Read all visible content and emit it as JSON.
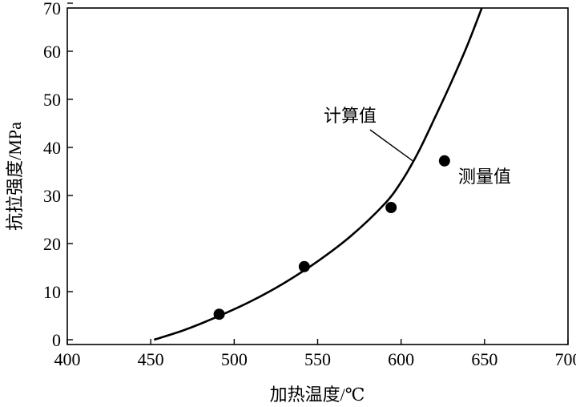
{
  "chart_data": {
    "type": "line",
    "xlabel": "加热温度/℃",
    "ylabel": "抗拉强度/MPa",
    "xlim": [
      400,
      700
    ],
    "ylim": [
      0,
      70
    ],
    "x_ticks": [
      "400",
      "450",
      "500",
      "550",
      "600",
      "650",
      "700"
    ],
    "y_ticks": [
      "0",
      "10",
      "20",
      "30",
      "40",
      "50",
      "60",
      "70"
    ],
    "grid": false,
    "series": [
      {
        "name": "计算值",
        "style": "line",
        "x": [
          452,
          470,
          490,
          510,
          530,
          550,
          570,
          590,
          600,
          610,
          620,
          630,
          640,
          650
        ],
        "y": [
          0,
          2,
          4.8,
          8,
          11.8,
          16.3,
          21.6,
          28.2,
          32.8,
          38.8,
          46,
          53.5,
          61.5,
          70.5
        ]
      },
      {
        "name": "测量值",
        "style": "scatter",
        "x": [
          491,
          542,
          594,
          626
        ],
        "y": [
          5.3,
          15.2,
          27.5,
          37.2
        ]
      }
    ],
    "annotations": {
      "calc_label": "计算值",
      "meas_label": "测量值"
    }
  },
  "colors": {
    "line": "#000000",
    "marker": "#000000",
    "axis": "#000000"
  }
}
